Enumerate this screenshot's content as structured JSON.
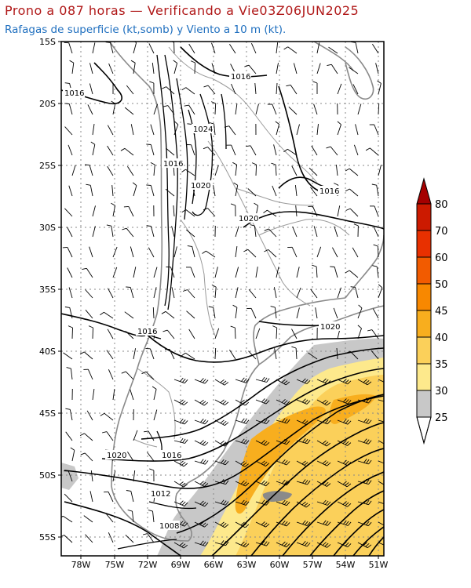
{
  "title": "Prono a 087 horas — Verificando a Vie03Z06JUN2025",
  "subtitle": "Rafagas de superficie (kt,somb) y Viento a 10 m (kt).",
  "map": {
    "lat_ticks": [
      "15S",
      "20S",
      "25S",
      "30S",
      "35S",
      "40S",
      "45S",
      "50S",
      "55S"
    ],
    "lon_ticks": [
      "78W",
      "75W",
      "72W",
      "69W",
      "66W",
      "63W",
      "60W",
      "57W",
      "54W",
      "51W"
    ],
    "isobar_labels": [
      "1016",
      "1016",
      "1024",
      "1016",
      "1020",
      "1016",
      "1020",
      "1016",
      "1020",
      "1020",
      "1016",
      "1012",
      "1008"
    ],
    "grid": true
  },
  "colorbar": {
    "labels": [
      "80",
      "70",
      "60",
      "50",
      "45",
      "40",
      "35",
      "30",
      "25"
    ],
    "colors": [
      "#a50000",
      "#cc1a00",
      "#e83000",
      "#f25b00",
      "#f88800",
      "#f8ae1e",
      "#fbd05a",
      "#fde98c",
      "#c8c8c8"
    ],
    "unit": "kt"
  }
}
